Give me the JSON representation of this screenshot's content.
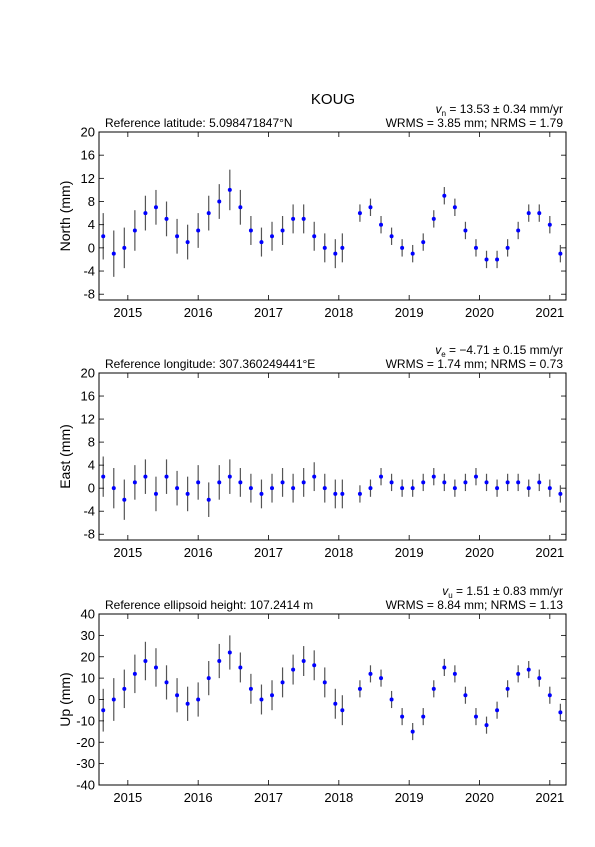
{
  "title": "KOUG",
  "chart_data": [
    {
      "type": "scatter",
      "y_label": "North (mm)",
      "reference": "Reference latitude: 5.098471847°N",
      "velocity_symbol": "v",
      "velocity_sub": "n",
      "velocity_text": " = 13.53 ± 0.34 mm/yr",
      "stats": "WRMS = 3.85 mm; NRMS = 1.79",
      "color": "#0000ff",
      "error_color": "#555555",
      "xlim": [
        2014.59,
        2021.23
      ],
      "xticks": [
        2015,
        2016,
        2017,
        2018,
        2019,
        2020,
        2021
      ],
      "ylim": [
        -9,
        20
      ],
      "yticks": [
        -8,
        -4,
        0,
        4,
        8,
        12,
        16,
        20
      ],
      "x": [
        2014.65,
        2014.8,
        2014.95,
        2015.1,
        2015.25,
        2015.4,
        2015.55,
        2015.7,
        2015.85,
        2016.0,
        2016.15,
        2016.3,
        2016.45,
        2016.6,
        2016.75,
        2016.9,
        2017.05,
        2017.2,
        2017.35,
        2017.5,
        2017.65,
        2017.8,
        2017.95,
        2018.05,
        2018.3,
        2018.45,
        2018.6,
        2018.75,
        2018.9,
        2019.05,
        2019.2,
        2019.35,
        2019.5,
        2019.65,
        2019.8,
        2019.95,
        2020.1,
        2020.25,
        2020.4,
        2020.55,
        2020.7,
        2020.85,
        2021.0,
        2021.15
      ],
      "values": [
        2,
        -1,
        0,
        3,
        6,
        7,
        5,
        2,
        1,
        3,
        6,
        8,
        10,
        7,
        3,
        1,
        2,
        3,
        5,
        5,
        2,
        0,
        -1,
        0,
        6,
        7,
        4,
        2,
        0,
        -1,
        1,
        5,
        9,
        7,
        3,
        0,
        -2,
        -2,
        0,
        3,
        6,
        6,
        4,
        -1
      ],
      "errors": [
        4,
        4,
        3.5,
        3.5,
        3,
        3,
        3,
        3,
        3,
        3,
        3,
        3,
        3.5,
        3,
        2.5,
        2.5,
        2.5,
        2.5,
        2.5,
        2.5,
        2.5,
        2.5,
        2.5,
        2.5,
        1.5,
        1.5,
        1.5,
        1.5,
        1.5,
        1.5,
        1.5,
        1.5,
        1.5,
        1.5,
        1.5,
        1.5,
        1.5,
        1.5,
        1.5,
        1.5,
        1.5,
        1.5,
        1.5,
        1.5
      ]
    },
    {
      "type": "scatter",
      "y_label": "East (mm)",
      "reference": "Reference longitude: 307.360249441°E",
      "velocity_symbol": "v",
      "velocity_sub": "e",
      "velocity_text": " = −4.71 ± 0.15 mm/yr",
      "stats": "WRMS = 1.74 mm; NRMS = 0.73",
      "color": "#0000ff",
      "error_color": "#555555",
      "xlim": [
        2014.59,
        2021.23
      ],
      "xticks": [
        2015,
        2016,
        2017,
        2018,
        2019,
        2020,
        2021
      ],
      "ylim": [
        -9,
        20
      ],
      "yticks": [
        -8,
        -4,
        0,
        4,
        8,
        12,
        16,
        20
      ],
      "x": [
        2014.65,
        2014.8,
        2014.95,
        2015.1,
        2015.25,
        2015.4,
        2015.55,
        2015.7,
        2015.85,
        2016.0,
        2016.15,
        2016.3,
        2016.45,
        2016.6,
        2016.75,
        2016.9,
        2017.05,
        2017.2,
        2017.35,
        2017.5,
        2017.65,
        2017.8,
        2017.95,
        2018.05,
        2018.3,
        2018.45,
        2018.6,
        2018.75,
        2018.9,
        2019.05,
        2019.2,
        2019.35,
        2019.5,
        2019.65,
        2019.8,
        2019.95,
        2020.1,
        2020.25,
        2020.4,
        2020.55,
        2020.7,
        2020.85,
        2021.0,
        2021.15
      ],
      "values": [
        2,
        0,
        -2,
        1,
        2,
        -1,
        2,
        0,
        -1,
        1,
        -2,
        1,
        2,
        1,
        0,
        -1,
        0,
        1,
        0,
        1,
        2,
        0,
        -1,
        -1,
        -1,
        0,
        2,
        1,
        0,
        0,
        1,
        2,
        1,
        0,
        1,
        2,
        1,
        0,
        1,
        1,
        0,
        1,
        0,
        -1
      ],
      "errors": [
        3.5,
        3.5,
        3.5,
        3,
        3,
        3,
        3,
        3,
        3,
        3,
        3,
        3,
        3,
        2.5,
        2.5,
        2.5,
        2.5,
        2.5,
        2.5,
        2.5,
        2.5,
        2.5,
        2.5,
        2.5,
        1.5,
        1.5,
        1.5,
        1.5,
        1.5,
        1.5,
        1.5,
        1.5,
        1.5,
        1.5,
        1.5,
        1.5,
        1.5,
        1.5,
        1.5,
        1.5,
        1.5,
        1.5,
        1.5,
        1.5
      ]
    },
    {
      "type": "scatter",
      "y_label": "Up (mm)",
      "reference": "Reference ellipsoid height: 107.2414 m",
      "velocity_symbol": "v",
      "velocity_sub": "u",
      "velocity_text": " = 1.51 ± 0.83 mm/yr",
      "stats": "WRMS = 8.84 mm; NRMS = 1.13",
      "color": "#0000ff",
      "error_color": "#555555",
      "xlim": [
        2014.59,
        2021.23
      ],
      "xticks": [
        2015,
        2016,
        2017,
        2018,
        2019,
        2020,
        2021
      ],
      "ylim": [
        -40,
        40
      ],
      "yticks": [
        -40,
        -30,
        -20,
        -10,
        0,
        10,
        20,
        30,
        40
      ],
      "x": [
        2014.65,
        2014.8,
        2014.95,
        2015.1,
        2015.25,
        2015.4,
        2015.55,
        2015.7,
        2015.85,
        2016.0,
        2016.15,
        2016.3,
        2016.45,
        2016.6,
        2016.75,
        2016.9,
        2017.05,
        2017.2,
        2017.35,
        2017.5,
        2017.65,
        2017.8,
        2017.95,
        2018.05,
        2018.3,
        2018.45,
        2018.6,
        2018.75,
        2018.9,
        2019.05,
        2019.2,
        2019.35,
        2019.5,
        2019.65,
        2019.8,
        2019.95,
        2020.1,
        2020.25,
        2020.4,
        2020.55,
        2020.7,
        2020.85,
        2021.0,
        2021.15
      ],
      "values": [
        -5,
        0,
        5,
        12,
        18,
        15,
        8,
        2,
        -2,
        0,
        10,
        18,
        22,
        15,
        5,
        0,
        2,
        8,
        14,
        18,
        16,
        8,
        -2,
        -5,
        5,
        12,
        10,
        0,
        -8,
        -15,
        -8,
        5,
        15,
        12,
        2,
        -8,
        -12,
        -5,
        5,
        12,
        14,
        10,
        2,
        -6
      ],
      "errors": [
        10,
        10,
        9,
        9,
        9,
        9,
        8,
        8,
        8,
        8,
        8,
        8,
        8,
        7,
        7,
        7,
        7,
        7,
        7,
        7,
        7,
        7,
        7,
        7,
        4,
        4,
        4,
        4,
        4,
        4,
        4,
        4,
        4,
        4,
        4,
        4,
        4,
        4,
        4,
        4,
        4,
        4,
        4,
        4
      ]
    }
  ]
}
